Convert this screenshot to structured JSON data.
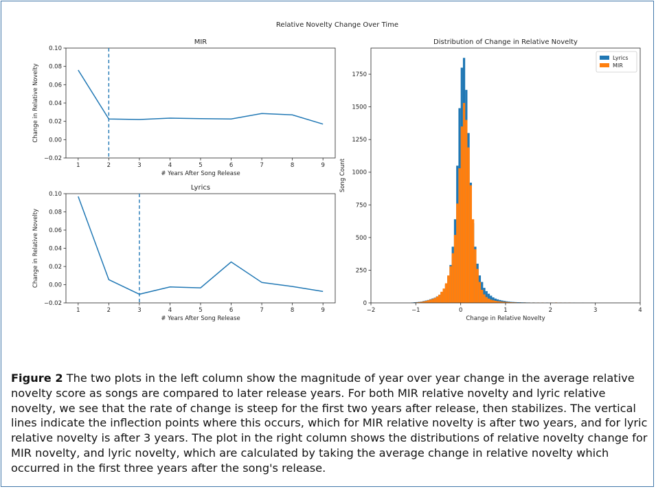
{
  "suptitle": "Relative Novelty Change Over Time",
  "caption": {
    "label": "Figure 2",
    "text": "The two plots in the left column show the magnitude of year over year change in the average relative novelty score as songs are compared to later release years. For both MIR relative novelty and lyric relative novelty, we see that the rate of change is steep for the first two years after release, then stabilizes. The vertical lines indicate the inflection points where this occurs, which for MIR relative novelty is after two years, and for lyric relative novelty is after 3 years. The plot in the right column shows the distributions of relative novelty change for MIR novelty, and lyric novelty, which are calculated by taking the average change in relative novelty which occurred in the first three years after the song's release."
  },
  "colors": {
    "lyrics": "#1f77b4",
    "mir": "#ff7f0e"
  },
  "chart_data": [
    {
      "type": "line",
      "title": "MIR",
      "xlabel": "# Years After Song Release",
      "ylabel": "Change in Relative Novelty",
      "x": [
        1,
        2,
        3,
        4,
        5,
        6,
        7,
        8,
        9
      ],
      "series": [
        {
          "values": [
            0.076,
            0.0225,
            0.022,
            0.0235,
            0.023,
            0.0225,
            0.0285,
            0.027,
            0.017
          ]
        }
      ],
      "vline": 2,
      "xticks": [
        "1",
        "2",
        "3",
        "4",
        "5",
        "6",
        "7",
        "8",
        "9"
      ],
      "yticks": [
        "−0.02",
        "0.00",
        "0.02",
        "0.04",
        "0.06",
        "0.08",
        "0.10"
      ],
      "ylim": [
        -0.02,
        0.1
      ]
    },
    {
      "type": "line",
      "title": "Lyrics",
      "xlabel": "# Years After Song Release",
      "ylabel": "Change in Relative Novelty",
      "x": [
        1,
        2,
        3,
        4,
        5,
        6,
        7,
        8,
        9
      ],
      "series": [
        {
          "values": [
            0.097,
            0.0055,
            -0.0105,
            -0.0025,
            -0.0035,
            0.025,
            0.0025,
            -0.002,
            -0.0075
          ]
        }
      ],
      "vline": 3,
      "xticks": [
        "1",
        "2",
        "3",
        "4",
        "5",
        "6",
        "7",
        "8",
        "9"
      ],
      "yticks": [
        "−0.02",
        "0.00",
        "0.02",
        "0.04",
        "0.06",
        "0.08",
        "0.10"
      ],
      "ylim": [
        -0.02,
        0.1
      ]
    },
    {
      "type": "bar",
      "title": "Distribution of Change in Relative Novelty",
      "xlabel": "Change in Relative Novelty",
      "ylabel": "Song Count",
      "xlim": [
        -2,
        4
      ],
      "ylim": [
        0,
        1950
      ],
      "xticks": [
        "−2",
        "−1",
        "0",
        "1",
        "2",
        "3",
        "4"
      ],
      "yticks": [
        "0",
        "250",
        "500",
        "750",
        "1000",
        "1250",
        "1500",
        "1750"
      ],
      "legend_position": "top-right",
      "bin_width": 0.05,
      "series": [
        {
          "name": "Lyrics",
          "bins": [
            [
              -1.1,
              3
            ],
            [
              -1.05,
              5
            ],
            [
              -1.0,
              6
            ],
            [
              -0.95,
              8
            ],
            [
              -0.9,
              10
            ],
            [
              -0.85,
              14
            ],
            [
              -0.8,
              18
            ],
            [
              -0.75,
              22
            ],
            [
              -0.7,
              28
            ],
            [
              -0.65,
              34
            ],
            [
              -0.6,
              40
            ],
            [
              -0.55,
              50
            ],
            [
              -0.5,
              62
            ],
            [
              -0.45,
              80
            ],
            [
              -0.4,
              100
            ],
            [
              -0.35,
              140
            ],
            [
              -0.3,
              200
            ],
            [
              -0.25,
              290
            ],
            [
              -0.2,
              430
            ],
            [
              -0.15,
              640
            ],
            [
              -0.1,
              1050
            ],
            [
              -0.05,
              1490
            ],
            [
              0.0,
              1800
            ],
            [
              0.05,
              1875
            ],
            [
              0.1,
              1630
            ],
            [
              0.15,
              1300
            ],
            [
              0.2,
              920
            ],
            [
              0.25,
              610
            ],
            [
              0.3,
              430
            ],
            [
              0.35,
              300
            ],
            [
              0.4,
              210
            ],
            [
              0.45,
              160
            ],
            [
              0.5,
              115
            ],
            [
              0.55,
              90
            ],
            [
              0.6,
              70
            ],
            [
              0.65,
              55
            ],
            [
              0.7,
              42
            ],
            [
              0.75,
              33
            ],
            [
              0.8,
              27
            ],
            [
              0.85,
              22
            ],
            [
              0.9,
              18
            ],
            [
              0.95,
              15
            ],
            [
              1.0,
              12
            ],
            [
              1.05,
              10
            ],
            [
              1.1,
              8
            ],
            [
              1.15,
              7
            ],
            [
              1.2,
              6
            ],
            [
              1.25,
              5
            ],
            [
              1.3,
              5
            ],
            [
              1.35,
              4
            ],
            [
              1.4,
              4
            ],
            [
              1.45,
              3
            ],
            [
              1.5,
              3
            ],
            [
              1.6,
              3
            ],
            [
              1.7,
              2
            ],
            [
              1.8,
              2
            ],
            [
              1.9,
              2
            ],
            [
              2.0,
              1
            ],
            [
              2.1,
              2
            ],
            [
              2.2,
              1
            ],
            [
              2.3,
              1
            ],
            [
              2.5,
              1
            ],
            [
              2.7,
              1
            ],
            [
              2.9,
              1
            ]
          ]
        },
        {
          "name": "MIR",
          "bins": [
            [
              -1.05,
              2
            ],
            [
              -1.0,
              4
            ],
            [
              -0.95,
              6
            ],
            [
              -0.9,
              8
            ],
            [
              -0.85,
              11
            ],
            [
              -0.8,
              15
            ],
            [
              -0.75,
              20
            ],
            [
              -0.7,
              25
            ],
            [
              -0.65,
              30
            ],
            [
              -0.6,
              38
            ],
            [
              -0.55,
              48
            ],
            [
              -0.5,
              62
            ],
            [
              -0.45,
              85
            ],
            [
              -0.4,
              110
            ],
            [
              -0.35,
              150
            ],
            [
              -0.3,
              210
            ],
            [
              -0.25,
              280
            ],
            [
              -0.2,
              380
            ],
            [
              -0.15,
              520
            ],
            [
              -0.1,
              760
            ],
            [
              -0.05,
              1030
            ],
            [
              0.0,
              1350
            ],
            [
              0.05,
              1530
            ],
            [
              0.1,
              1400
            ],
            [
              0.15,
              1190
            ],
            [
              0.2,
              900
            ],
            [
              0.25,
              640
            ],
            [
              0.3,
              410
            ],
            [
              0.35,
              260
            ],
            [
              0.4,
              160
            ],
            [
              0.45,
              100
            ],
            [
              0.5,
              65
            ],
            [
              0.55,
              45
            ],
            [
              0.6,
              33
            ],
            [
              0.65,
              25
            ],
            [
              0.7,
              20
            ],
            [
              0.75,
              16
            ],
            [
              0.8,
              13
            ],
            [
              0.85,
              11
            ],
            [
              0.9,
              9
            ],
            [
              0.95,
              8
            ],
            [
              1.0,
              7
            ],
            [
              1.05,
              6
            ],
            [
              1.1,
              5
            ],
            [
              1.15,
              4
            ],
            [
              1.2,
              4
            ],
            [
              1.3,
              3
            ],
            [
              1.4,
              3
            ],
            [
              1.5,
              2
            ],
            [
              1.6,
              2
            ],
            [
              1.7,
              2
            ],
            [
              1.8,
              2
            ],
            [
              2.0,
              2
            ],
            [
              2.1,
              3
            ],
            [
              2.2,
              2
            ],
            [
              2.3,
              1
            ],
            [
              2.4,
              2
            ]
          ]
        }
      ]
    }
  ]
}
